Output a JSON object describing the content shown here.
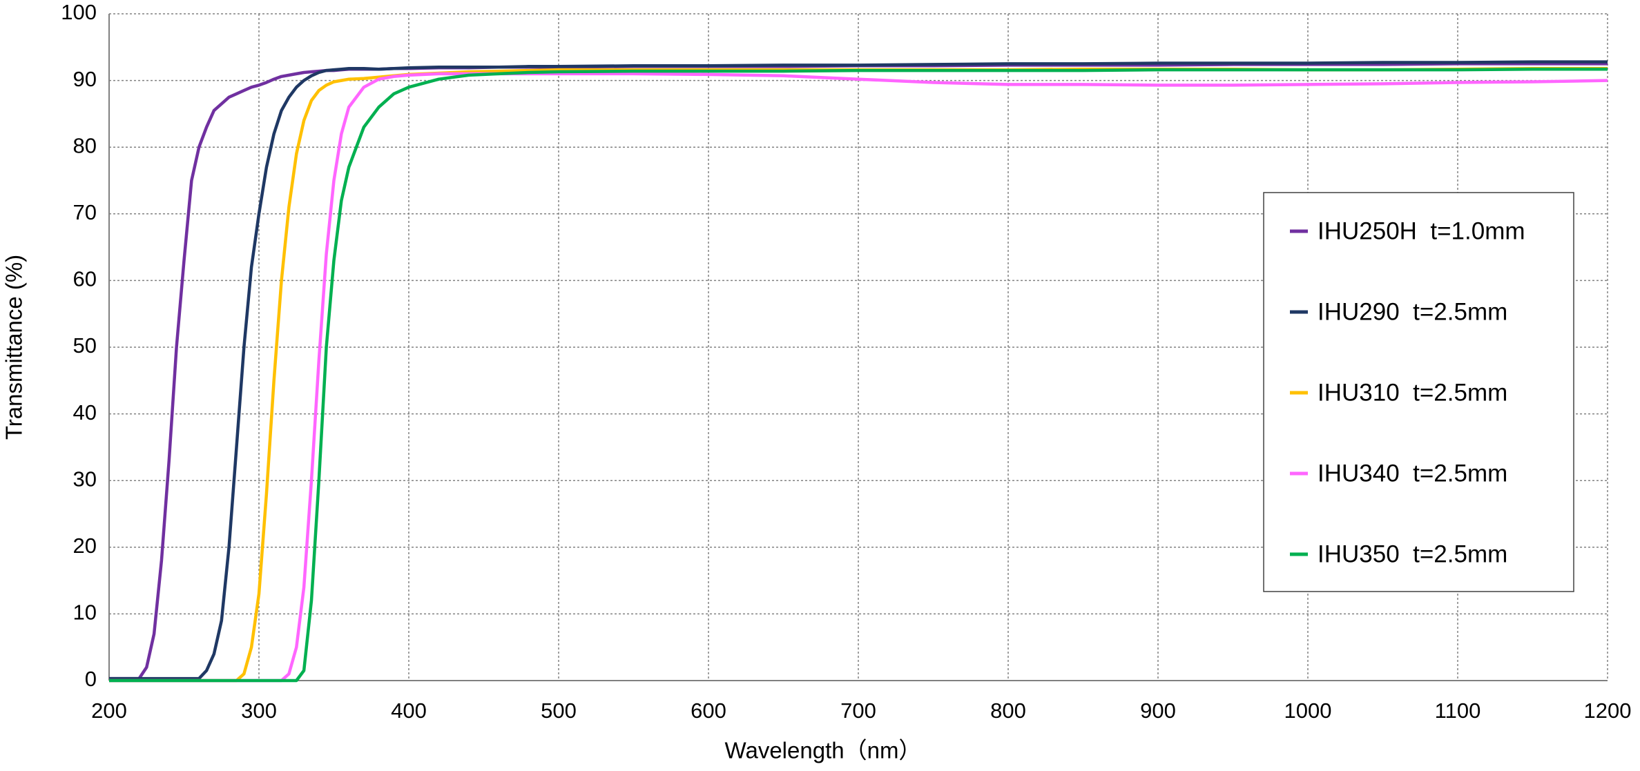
{
  "chart_data": {
    "type": "line",
    "xlabel": "Wavelength（nm）",
    "ylabel": "Transmittance (%)",
    "x": [
      200,
      210,
      220,
      225,
      230,
      235,
      240,
      245,
      250,
      255,
      260,
      265,
      270,
      275,
      280,
      285,
      290,
      295,
      300,
      305,
      310,
      315,
      320,
      325,
      330,
      335,
      340,
      345,
      350,
      355,
      360,
      370,
      380,
      390,
      400,
      420,
      440,
      460,
      480,
      500,
      550,
      600,
      650,
      700,
      750,
      800,
      850,
      900,
      950,
      1000,
      1050,
      1100,
      1150,
      1200
    ],
    "series": [
      {
        "name": "IHU250H  t=1.0mm",
        "color": "#7030a0",
        "values": [
          0.3,
          0.3,
          0.3,
          2,
          7,
          18,
          33,
          50,
          63,
          75,
          80,
          83,
          85.5,
          86.5,
          87.5,
          88,
          88.5,
          89,
          89.3,
          89.7,
          90.2,
          90.6,
          90.8,
          91,
          91.2,
          91.3,
          91.4,
          91.5,
          91.5,
          91.6,
          91.7,
          91.7,
          91.7,
          91.8,
          91.8,
          91.9,
          91.9,
          92,
          92,
          92,
          92.1,
          92.1,
          92.1,
          92.2,
          92.2,
          92.3,
          92.3,
          92.3,
          92.4,
          92.4,
          92.4,
          92.5,
          92.5,
          92.5
        ]
      },
      {
        "name": "IHU290  t=2.5mm",
        "color": "#1f3864",
        "values": [
          0.3,
          0.3,
          0.3,
          0.3,
          0.3,
          0.3,
          0.3,
          0.3,
          0.3,
          0.3,
          0.3,
          1.5,
          4,
          9,
          20,
          35,
          50,
          62,
          70,
          77,
          82,
          85.5,
          87.5,
          89,
          90,
          90.7,
          91.2,
          91.5,
          91.6,
          91.7,
          91.8,
          91.8,
          91.7,
          91.8,
          91.9,
          92,
          92,
          92,
          92.1,
          92.1,
          92.2,
          92.2,
          92.3,
          92.3,
          92.4,
          92.5,
          92.5,
          92.6,
          92.6,
          92.6,
          92.7,
          92.7,
          92.8,
          92.8
        ]
      },
      {
        "name": "IHU310  t=2.5mm",
        "color": "#ffc000",
        "values": [
          0,
          0,
          0,
          0,
          0,
          0,
          0,
          0,
          0,
          0,
          0,
          0,
          0,
          0,
          0,
          0,
          1,
          5,
          13,
          28,
          45,
          60,
          71,
          79,
          84,
          87,
          88.5,
          89.3,
          89.8,
          90,
          90.2,
          90.3,
          90.5,
          90.7,
          90.9,
          91.1,
          91.3,
          91.4,
          91.5,
          91.6,
          91.6,
          91.6,
          91.6,
          91.6,
          91.6,
          91.6,
          91.7,
          91.7,
          91.7,
          91.6,
          91.6,
          91.7,
          91.8,
          91.8
        ]
      },
      {
        "name": "IHU340  t=2.5mm",
        "color": "#ff66ff",
        "values": [
          0,
          0,
          0,
          0,
          0,
          0,
          0,
          0,
          0,
          0,
          0,
          0,
          0,
          0,
          0,
          0,
          0,
          0,
          0,
          0,
          0,
          0,
          1,
          5,
          14,
          30,
          48,
          64,
          75,
          82,
          86,
          89,
          90.2,
          90.6,
          90.8,
          91,
          91,
          91,
          91,
          91,
          91,
          90.9,
          90.7,
          90.2,
          89.7,
          89.4,
          89.4,
          89.3,
          89.3,
          89.4,
          89.5,
          89.7,
          89.8,
          90
        ]
      },
      {
        "name": "IHU350  t=2.5mm",
        "color": "#00b050",
        "values": [
          0,
          0,
          0,
          0,
          0,
          0,
          0,
          0,
          0,
          0,
          0,
          0,
          0,
          0,
          0,
          0,
          0,
          0,
          0,
          0,
          0,
          0,
          0,
          0,
          1.5,
          12,
          30,
          50,
          63,
          72,
          77,
          83,
          86,
          88,
          89,
          90.2,
          90.8,
          91,
          91.2,
          91.3,
          91.4,
          91.4,
          91.4,
          91.5,
          91.5,
          91.5,
          91.5,
          91.6,
          91.6,
          91.6,
          91.6,
          91.6,
          91.7,
          91.7
        ]
      }
    ],
    "xlim": [
      200,
      1200
    ],
    "xticks": [
      200,
      300,
      400,
      500,
      600,
      700,
      800,
      900,
      1000,
      1100,
      1200
    ],
    "ylim": [
      0,
      100
    ],
    "yticks": [
      0,
      10,
      20,
      30,
      40,
      50,
      60,
      70,
      80,
      90,
      100
    ],
    "grid": true,
    "legend": "right"
  }
}
